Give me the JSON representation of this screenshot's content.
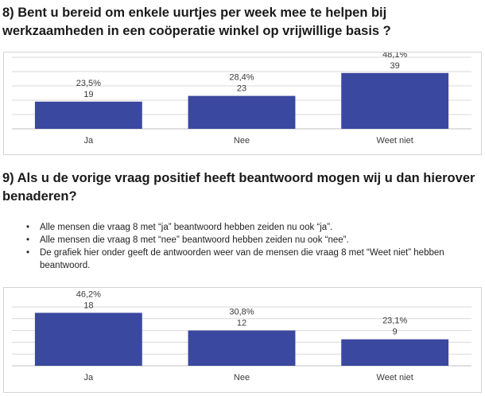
{
  "questions": {
    "q8": "8) Bent u bereid om enkele uurtjes per week mee te helpen bij werkzaamheden in een coöperatie winkel op vrijwillige basis ?",
    "q9": "9) Als u de vorige vraag positief heeft beantwoord mogen wij u dan hierover benaderen?"
  },
  "notes": [
    "Alle mensen die vraag 8 met “ja” beantwoord hebben zeiden nu ook “ja”.",
    "Alle mensen die vraag 8 met “nee” beantwoord hebben zeiden nu ook “nee”.",
    "De grafiek hier onder geeft de antwoorden weer van de mensen die vraag 8 met “Weet niet” hebben beantwoord."
  ],
  "bullet_char": "•",
  "colors": {
    "bar": "#3b48a0",
    "grid": "#d9d9d9",
    "text": "#3a3a3a"
  },
  "chart_data": [
    {
      "type": "bar",
      "categories": [
        "Ja",
        "Nee",
        "Weet niet"
      ],
      "values": [
        19,
        23,
        39
      ],
      "labels_pct": [
        "23,5%",
        "28,4%",
        "48,1%"
      ],
      "labels_count": [
        "19",
        "23",
        "39"
      ],
      "ylim": [
        0,
        50
      ],
      "grid": true
    },
    {
      "type": "bar",
      "categories": [
        "Ja",
        "Nee",
        "Weet niet"
      ],
      "values": [
        18,
        12,
        9
      ],
      "labels_pct": [
        "46,2%",
        "30,8%",
        "23,1%"
      ],
      "labels_count": [
        "18",
        "12",
        "9"
      ],
      "ylim": [
        0,
        20
      ],
      "grid": true
    }
  ]
}
